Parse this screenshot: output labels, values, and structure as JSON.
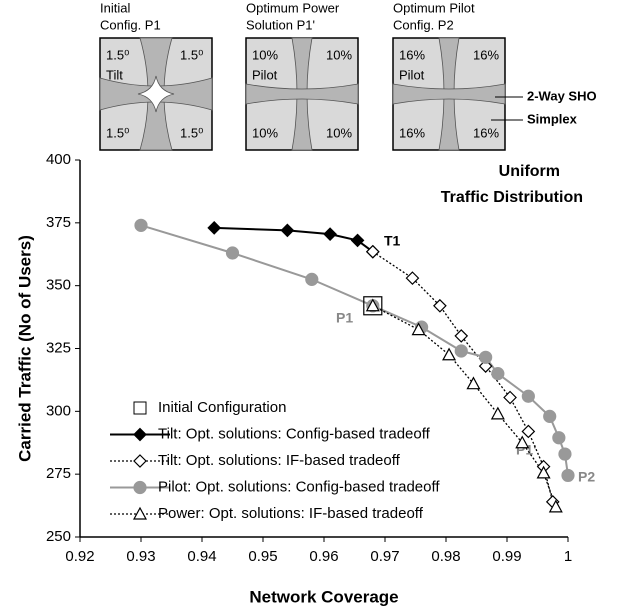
{
  "chart_data": {
    "type": "line",
    "xlabel": "Network Coverage",
    "ylabel": "Carried Traffic (No of Users)",
    "xlim": [
      0.92,
      1
    ],
    "ylim": [
      250,
      400
    ],
    "xticks": [
      0.92,
      0.93,
      0.94,
      0.95,
      0.96,
      0.97,
      0.98,
      0.99,
      1
    ],
    "yticks": [
      250,
      275,
      300,
      325,
      350,
      375,
      400
    ],
    "annotations": [
      "Uniform",
      "Traffic Distribution",
      "T1",
      "P1",
      "P1'",
      "P2"
    ],
    "initial": {
      "name": "Initial Configuration",
      "x": 0.968,
      "y": 342
    },
    "series": [
      {
        "name": "Tilt: Opt. solutions: Config-based tradeoff",
        "color": "#000000",
        "marker": "diamond",
        "marker_fill": "#000000",
        "dash": "solid",
        "x": [
          0.942,
          0.954,
          0.961,
          0.9655,
          0.968
        ],
        "values": [
          373,
          372,
          370.5,
          368,
          363.5
        ]
      },
      {
        "name": "Tilt: Opt. solutions: IF-based tradeoff",
        "color": "#000000",
        "marker": "diamond",
        "marker_fill": "#ffffff",
        "dash": "dotted",
        "x": [
          0.968,
          0.9745,
          0.979,
          0.9825,
          0.9865,
          0.9905,
          0.9935,
          0.996,
          0.9975
        ],
        "values": [
          363.5,
          353,
          342,
          330,
          318,
          305.5,
          292,
          278,
          264
        ]
      },
      {
        "name": "Pilot: Opt. solutions: Config-based tradeoff",
        "color": "#999999",
        "marker": "circle",
        "marker_fill": "#999999",
        "dash": "solid",
        "x": [
          0.93,
          0.945,
          0.958,
          0.968,
          0.976,
          0.9825,
          0.9865,
          0.9885,
          0.9935,
          0.997,
          0.9985,
          0.9995,
          1
        ],
        "values": [
          374,
          363,
          352.5,
          342,
          333.5,
          324,
          321.5,
          315,
          306,
          298,
          289.5,
          283,
          274.5
        ]
      },
      {
        "name": "Power: Opt. solutions: IF-based tradeoff",
        "color": "#000000",
        "marker": "triangle",
        "marker_fill": "#ffffff",
        "dash": "dotted",
        "x": [
          0.968,
          0.9755,
          0.9805,
          0.9845,
          0.9885,
          0.9925,
          0.996,
          0.998
        ],
        "values": [
          342,
          332.5,
          322.5,
          311,
          299,
          287.5,
          275.5,
          262
        ]
      }
    ]
  },
  "insets": [
    {
      "title": [
        "Initial",
        "Config. P1"
      ],
      "labels": [
        "1.5⁰",
        "1.5⁰",
        "1.5⁰",
        "1.5⁰"
      ],
      "extra": "Tilt"
    },
    {
      "title": [
        "Optimum Power",
        "Solution P1'"
      ],
      "labels": [
        "10%",
        "10%",
        "10%",
        "10%"
      ],
      "extra": "Pilot"
    },
    {
      "title": [
        "Optimum Pilot",
        "Config. P2"
      ],
      "labels": [
        "16%",
        "16%",
        "16%",
        "16%"
      ],
      "extra": "Pilot"
    }
  ],
  "inset_legend": [
    "2-Way SHO",
    "Simplex"
  ]
}
